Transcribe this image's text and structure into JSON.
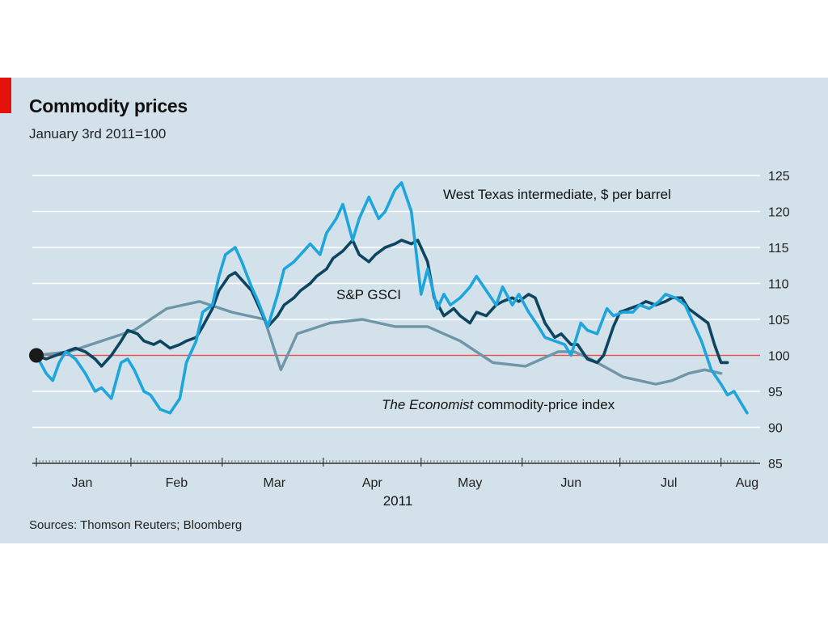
{
  "header": {
    "title": "Commodity prices",
    "subtitle": "January 3rd 2011=100"
  },
  "footer": {
    "source": "Sources: Thomson Reuters; Bloomberg"
  },
  "colors": {
    "background": "#d3e2ea",
    "accent": "#e3120b",
    "wti": "#1da5dc",
    "gsci": "#0d4560",
    "economist": "#6e95a8",
    "baseline": "#e0524d",
    "grid": "#ffffff"
  },
  "chart_data": {
    "type": "line",
    "title": "Commodity prices",
    "subtitle": "January 3rd 2011=100",
    "xlabel": "2011",
    "ylabel": "",
    "ylim": [
      85,
      125
    ],
    "yticks": [
      85,
      90,
      95,
      100,
      105,
      110,
      115,
      120,
      125
    ],
    "xticks": [
      "Jan",
      "Feb",
      "Mar",
      "Apr",
      "May",
      "Jun",
      "Jul",
      "Aug"
    ],
    "x_range_days": [
      0,
      220
    ],
    "year_label": "2011",
    "baseline": 100,
    "start_marker": 100,
    "grid": true,
    "source": "Sources: Thomson Reuters; Bloomberg",
    "series": [
      {
        "name": "West Texas intermediate, $ per barrel",
        "label": "West Texas intermediate, $ per barrel",
        "x": [
          0,
          3,
          5,
          7,
          9,
          12,
          15,
          18,
          20,
          23,
          26,
          28,
          30,
          33,
          35,
          38,
          41,
          44,
          46,
          49,
          51,
          54,
          56,
          58,
          61,
          63,
          66,
          68,
          71,
          74,
          76,
          79,
          81,
          84,
          87,
          89,
          92,
          94,
          97,
          99,
          102,
          105,
          107,
          110,
          112,
          115,
          118,
          120,
          123,
          125,
          127,
          130,
          133,
          135,
          138,
          141,
          143,
          146,
          148,
          151,
          154,
          156,
          159,
          162,
          164,
          167,
          169,
          172,
          175,
          177,
          180,
          183,
          185,
          188,
          191,
          193,
          196,
          199,
          202,
          204,
          207,
          210,
          212,
          214,
          216,
          218
        ],
        "values": [
          100,
          97.5,
          96.5,
          99,
          100.5,
          99.5,
          97.5,
          95,
          95.5,
          94,
          99,
          99.5,
          98,
          95,
          94.5,
          92.5,
          92,
          94,
          99,
          102,
          106,
          107,
          111,
          114,
          115,
          113,
          109.5,
          107.5,
          104,
          108.5,
          112,
          113,
          114,
          115.5,
          114,
          117,
          119,
          121,
          116,
          119,
          122,
          119,
          120,
          123,
          124,
          120,
          108.5,
          112,
          106.5,
          108.5,
          107,
          108,
          109.5,
          111,
          109,
          107,
          109.5,
          107,
          108.5,
          106,
          104,
          102.5,
          102,
          101.5,
          100,
          104.5,
          103.5,
          103,
          106.5,
          105.5,
          106,
          106,
          107,
          106.5,
          107.5,
          108.5,
          108,
          107,
          104,
          102,
          98,
          96,
          94.5,
          95,
          93.5,
          92
        ]
      },
      {
        "name": "S&P GSCI",
        "label": "S&P GSCI",
        "x": [
          0,
          3,
          6,
          9,
          12,
          15,
          18,
          20,
          23,
          26,
          28,
          31,
          33,
          36,
          38,
          41,
          44,
          46,
          49,
          51,
          54,
          56,
          59,
          61,
          64,
          66,
          69,
          71,
          74,
          76,
          79,
          81,
          84,
          86,
          89,
          91,
          94,
          97,
          99,
          102,
          104,
          107,
          110,
          112,
          115,
          117,
          120,
          122,
          125,
          128,
          130,
          133,
          135,
          138,
          141,
          143,
          146,
          148,
          151,
          153,
          156,
          159,
          161,
          164,
          166,
          169,
          172,
          174,
          177,
          179,
          182,
          185,
          187,
          190,
          193,
          195,
          198,
          200,
          203,
          206,
          208,
          210,
          212
        ],
        "values": [
          100,
          99.5,
          100,
          100.5,
          101,
          100.5,
          99.5,
          98.5,
          100,
          102,
          103.5,
          103,
          102,
          101.5,
          102,
          101,
          101.5,
          102,
          102.5,
          104,
          106.5,
          109,
          111,
          111.5,
          110,
          109,
          106,
          104,
          105.5,
          107,
          108,
          109,
          110,
          111,
          112,
          113.5,
          114.5,
          116,
          114,
          113,
          114,
          115,
          115.5,
          116,
          115.5,
          116,
          113,
          108,
          105.5,
          106.5,
          105.5,
          104.5,
          106,
          105.5,
          107,
          107.5,
          108,
          107.5,
          108.5,
          108,
          104.5,
          102.5,
          103,
          101.5,
          101.5,
          99.5,
          99,
          100,
          104,
          106,
          106.5,
          107,
          107.5,
          107,
          107.5,
          108,
          108,
          106.5,
          105.5,
          104.5,
          101.5,
          99,
          99
        ]
      },
      {
        "name": "The Economist commodity-price index",
        "label_italic": "The Economist",
        "label_rest": " commodity-price index",
        "x": [
          0,
          10,
          20,
          30,
          40,
          50,
          60,
          70,
          75,
          80,
          90,
          100,
          110,
          120,
          130,
          140,
          150,
          155,
          160,
          165,
          170,
          180,
          190,
          195,
          200,
          205,
          210
        ],
        "values": [
          100,
          100.5,
          102,
          103.5,
          106.5,
          107.5,
          106,
          105,
          98,
          103,
          104.5,
          105,
          104,
          104,
          102,
          99,
          98.5,
          99.5,
          100.5,
          100.5,
          99.5,
          97,
          96,
          96.5,
          97.5,
          98,
          97.5
        ]
      }
    ]
  }
}
